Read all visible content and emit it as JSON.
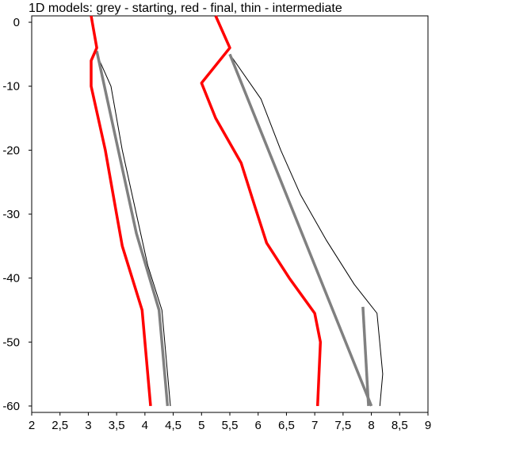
{
  "chart_data": {
    "type": "line",
    "title": "1D models: grey - starting, red - final, thin - intermediate",
    "xlabel": "",
    "ylabel": "",
    "xlim": [
      2,
      9
    ],
    "ylim": [
      -61,
      1
    ],
    "x_ticks": [
      "2",
      "2,5",
      "3",
      "3,5",
      "4",
      "4,5",
      "5",
      "5,5",
      "6",
      "6,5",
      "7",
      "7,5",
      "8",
      "8,5",
      "9"
    ],
    "y_ticks": [
      "0",
      "-10",
      "-20",
      "-30",
      "-40",
      "-50",
      "-60"
    ],
    "grid": false,
    "legend": "none",
    "colors": {
      "starting": "#808080",
      "final": "#ff0000",
      "intermediate": "#000000"
    },
    "series": [
      {
        "role": "intermediate",
        "curve": "Vs",
        "color": "#000000",
        "points": [
          [
            3.15,
            -5
          ],
          [
            3.4,
            -10
          ],
          [
            3.6,
            -20
          ],
          [
            3.85,
            -30
          ],
          [
            4.05,
            -38
          ],
          [
            4.3,
            -45
          ],
          [
            4.45,
            -60
          ]
        ]
      },
      {
        "role": "intermediate",
        "curve": "Vp",
        "color": "#000000",
        "points": [
          [
            5.5,
            -5
          ],
          [
            6.05,
            -12
          ],
          [
            6.4,
            -20
          ],
          [
            6.75,
            -27
          ],
          [
            7.2,
            -34
          ],
          [
            7.7,
            -41
          ],
          [
            8.1,
            -45.5
          ],
          [
            8.2,
            -55
          ],
          [
            8.15,
            -60
          ]
        ]
      },
      {
        "role": "starting",
        "curve": "Vs",
        "color": "#808080",
        "points": [
          [
            3.15,
            -4.5
          ],
          [
            3.85,
            -33
          ],
          [
            4.25,
            -45
          ],
          [
            4.4,
            -60
          ]
        ]
      },
      {
        "role": "starting",
        "curve": "Vp",
        "color": "#808080",
        "points": [
          [
            5.5,
            -5
          ],
          [
            8.0,
            -60
          ]
        ]
      },
      {
        "role": "starting",
        "curve": "Vp-deep",
        "color": "#808080",
        "points": [
          [
            7.85,
            -44.5
          ],
          [
            7.95,
            -60
          ]
        ]
      },
      {
        "role": "final",
        "curve": "Vs",
        "color": "#ff0000",
        "points": [
          [
            3.05,
            1
          ],
          [
            3.15,
            -4
          ],
          [
            3.05,
            -6
          ],
          [
            3.05,
            -10
          ],
          [
            3.3,
            -20
          ],
          [
            3.5,
            -30
          ],
          [
            3.6,
            -35
          ],
          [
            3.95,
            -45
          ],
          [
            4.1,
            -60
          ]
        ]
      },
      {
        "role": "final",
        "curve": "Vp",
        "color": "#ff0000",
        "points": [
          [
            5.25,
            1
          ],
          [
            5.5,
            -4
          ],
          [
            5.0,
            -9.5
          ],
          [
            5.25,
            -15
          ],
          [
            5.7,
            -22
          ],
          [
            5.95,
            -29
          ],
          [
            6.15,
            -34.5
          ],
          [
            6.55,
            -40
          ],
          [
            7.0,
            -45.5
          ],
          [
            7.1,
            -50
          ],
          [
            7.05,
            -60
          ]
        ]
      }
    ]
  }
}
